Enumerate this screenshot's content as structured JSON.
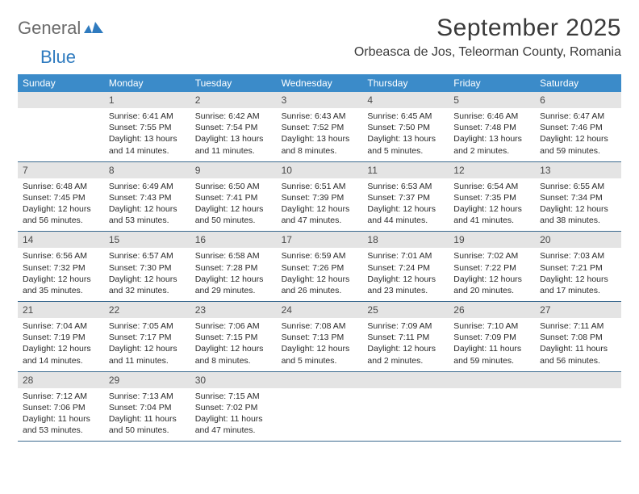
{
  "logo": {
    "word1": "General",
    "word2": "Blue"
  },
  "title": "September 2025",
  "location": "Orbeasca de Jos, Teleorman County, Romania",
  "colors": {
    "header_bg": "#3b8bc9",
    "header_text": "#ffffff",
    "daynum_bg": "#e4e4e4",
    "daynum_text": "#4a4a4a",
    "body_text": "#2a2a2a",
    "rule": "#3b6a8f",
    "logo_gray": "#6b6b6b",
    "logo_blue": "#2f7bbf"
  },
  "dayNames": [
    "Sunday",
    "Monday",
    "Tuesday",
    "Wednesday",
    "Thursday",
    "Friday",
    "Saturday"
  ],
  "weeks": [
    [
      {
        "n": "",
        "sr": "",
        "ss": "",
        "dl": ""
      },
      {
        "n": "1",
        "sr": "Sunrise: 6:41 AM",
        "ss": "Sunset: 7:55 PM",
        "dl": "Daylight: 13 hours and 14 minutes."
      },
      {
        "n": "2",
        "sr": "Sunrise: 6:42 AM",
        "ss": "Sunset: 7:54 PM",
        "dl": "Daylight: 13 hours and 11 minutes."
      },
      {
        "n": "3",
        "sr": "Sunrise: 6:43 AM",
        "ss": "Sunset: 7:52 PM",
        "dl": "Daylight: 13 hours and 8 minutes."
      },
      {
        "n": "4",
        "sr": "Sunrise: 6:45 AM",
        "ss": "Sunset: 7:50 PM",
        "dl": "Daylight: 13 hours and 5 minutes."
      },
      {
        "n": "5",
        "sr": "Sunrise: 6:46 AM",
        "ss": "Sunset: 7:48 PM",
        "dl": "Daylight: 13 hours and 2 minutes."
      },
      {
        "n": "6",
        "sr": "Sunrise: 6:47 AM",
        "ss": "Sunset: 7:46 PM",
        "dl": "Daylight: 12 hours and 59 minutes."
      }
    ],
    [
      {
        "n": "7",
        "sr": "Sunrise: 6:48 AM",
        "ss": "Sunset: 7:45 PM",
        "dl": "Daylight: 12 hours and 56 minutes."
      },
      {
        "n": "8",
        "sr": "Sunrise: 6:49 AM",
        "ss": "Sunset: 7:43 PM",
        "dl": "Daylight: 12 hours and 53 minutes."
      },
      {
        "n": "9",
        "sr": "Sunrise: 6:50 AM",
        "ss": "Sunset: 7:41 PM",
        "dl": "Daylight: 12 hours and 50 minutes."
      },
      {
        "n": "10",
        "sr": "Sunrise: 6:51 AM",
        "ss": "Sunset: 7:39 PM",
        "dl": "Daylight: 12 hours and 47 minutes."
      },
      {
        "n": "11",
        "sr": "Sunrise: 6:53 AM",
        "ss": "Sunset: 7:37 PM",
        "dl": "Daylight: 12 hours and 44 minutes."
      },
      {
        "n": "12",
        "sr": "Sunrise: 6:54 AM",
        "ss": "Sunset: 7:35 PM",
        "dl": "Daylight: 12 hours and 41 minutes."
      },
      {
        "n": "13",
        "sr": "Sunrise: 6:55 AM",
        "ss": "Sunset: 7:34 PM",
        "dl": "Daylight: 12 hours and 38 minutes."
      }
    ],
    [
      {
        "n": "14",
        "sr": "Sunrise: 6:56 AM",
        "ss": "Sunset: 7:32 PM",
        "dl": "Daylight: 12 hours and 35 minutes."
      },
      {
        "n": "15",
        "sr": "Sunrise: 6:57 AM",
        "ss": "Sunset: 7:30 PM",
        "dl": "Daylight: 12 hours and 32 minutes."
      },
      {
        "n": "16",
        "sr": "Sunrise: 6:58 AM",
        "ss": "Sunset: 7:28 PM",
        "dl": "Daylight: 12 hours and 29 minutes."
      },
      {
        "n": "17",
        "sr": "Sunrise: 6:59 AM",
        "ss": "Sunset: 7:26 PM",
        "dl": "Daylight: 12 hours and 26 minutes."
      },
      {
        "n": "18",
        "sr": "Sunrise: 7:01 AM",
        "ss": "Sunset: 7:24 PM",
        "dl": "Daylight: 12 hours and 23 minutes."
      },
      {
        "n": "19",
        "sr": "Sunrise: 7:02 AM",
        "ss": "Sunset: 7:22 PM",
        "dl": "Daylight: 12 hours and 20 minutes."
      },
      {
        "n": "20",
        "sr": "Sunrise: 7:03 AM",
        "ss": "Sunset: 7:21 PM",
        "dl": "Daylight: 12 hours and 17 minutes."
      }
    ],
    [
      {
        "n": "21",
        "sr": "Sunrise: 7:04 AM",
        "ss": "Sunset: 7:19 PM",
        "dl": "Daylight: 12 hours and 14 minutes."
      },
      {
        "n": "22",
        "sr": "Sunrise: 7:05 AM",
        "ss": "Sunset: 7:17 PM",
        "dl": "Daylight: 12 hours and 11 minutes."
      },
      {
        "n": "23",
        "sr": "Sunrise: 7:06 AM",
        "ss": "Sunset: 7:15 PM",
        "dl": "Daylight: 12 hours and 8 minutes."
      },
      {
        "n": "24",
        "sr": "Sunrise: 7:08 AM",
        "ss": "Sunset: 7:13 PM",
        "dl": "Daylight: 12 hours and 5 minutes."
      },
      {
        "n": "25",
        "sr": "Sunrise: 7:09 AM",
        "ss": "Sunset: 7:11 PM",
        "dl": "Daylight: 12 hours and 2 minutes."
      },
      {
        "n": "26",
        "sr": "Sunrise: 7:10 AM",
        "ss": "Sunset: 7:09 PM",
        "dl": "Daylight: 11 hours and 59 minutes."
      },
      {
        "n": "27",
        "sr": "Sunrise: 7:11 AM",
        "ss": "Sunset: 7:08 PM",
        "dl": "Daylight: 11 hours and 56 minutes."
      }
    ],
    [
      {
        "n": "28",
        "sr": "Sunrise: 7:12 AM",
        "ss": "Sunset: 7:06 PM",
        "dl": "Daylight: 11 hours and 53 minutes."
      },
      {
        "n": "29",
        "sr": "Sunrise: 7:13 AM",
        "ss": "Sunset: 7:04 PM",
        "dl": "Daylight: 11 hours and 50 minutes."
      },
      {
        "n": "30",
        "sr": "Sunrise: 7:15 AM",
        "ss": "Sunset: 7:02 PM",
        "dl": "Daylight: 11 hours and 47 minutes."
      },
      {
        "n": "",
        "sr": "",
        "ss": "",
        "dl": ""
      },
      {
        "n": "",
        "sr": "",
        "ss": "",
        "dl": ""
      },
      {
        "n": "",
        "sr": "",
        "ss": "",
        "dl": ""
      },
      {
        "n": "",
        "sr": "",
        "ss": "",
        "dl": ""
      }
    ]
  ]
}
